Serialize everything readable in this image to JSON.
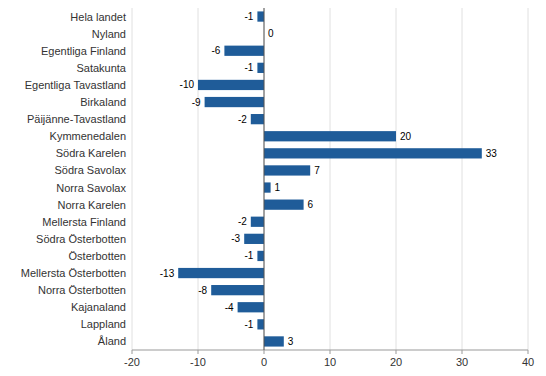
{
  "chart_data": {
    "type": "bar",
    "orientation": "horizontal",
    "categories": [
      "Hela landet",
      "Nyland",
      "Egentliga Finland",
      "Satakunta",
      "Egentliga Tavastland",
      "Birkaland",
      "Päijänne-Tavastland",
      "Kymmenedalen",
      "Södra Karelen",
      "Södra Savolax",
      "Norra Savolax",
      "Norra Karelen",
      "Mellersta Finland",
      "Södra Österbotten",
      "Österbotten",
      "Mellersta Österbotten",
      "Norra Österbotten",
      "Kajanaland",
      "Lappland",
      "Åland"
    ],
    "values": [
      -1,
      0,
      -6,
      -1,
      -10,
      -9,
      -2,
      20,
      33,
      7,
      1,
      6,
      -2,
      -3,
      -1,
      -13,
      -8,
      -4,
      -1,
      3
    ],
    "color": "#1F5C99",
    "xlim": [
      -20,
      40
    ],
    "xticks": [
      -20,
      -10,
      0,
      10,
      20,
      30,
      40
    ],
    "grid": true,
    "data_labels": true
  }
}
